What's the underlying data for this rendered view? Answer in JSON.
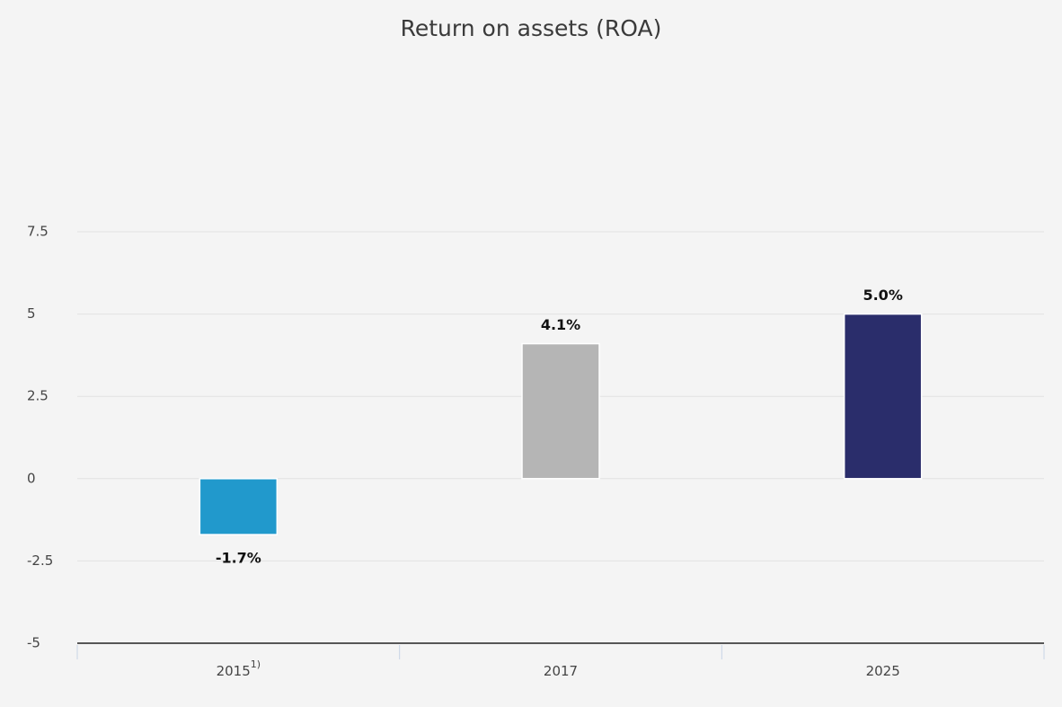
{
  "chart_data": {
    "type": "bar",
    "title": "Return on assets (ROA)",
    "categories": [
      "2015",
      "2017",
      "2025"
    ],
    "category_superscripts": [
      "1)",
      null,
      null
    ],
    "values": [
      -1.7,
      4.1,
      5.0
    ],
    "value_labels": [
      "-1.7%",
      "4.1%",
      "5.0%"
    ],
    "colors": [
      "#2199cc",
      "#b5b5b5",
      "#2a2d6b"
    ],
    "ylim": [
      -5,
      7.5
    ],
    "yticks": [
      -5,
      -2.5,
      0,
      2.5,
      5,
      7.5
    ],
    "grid": true
  }
}
